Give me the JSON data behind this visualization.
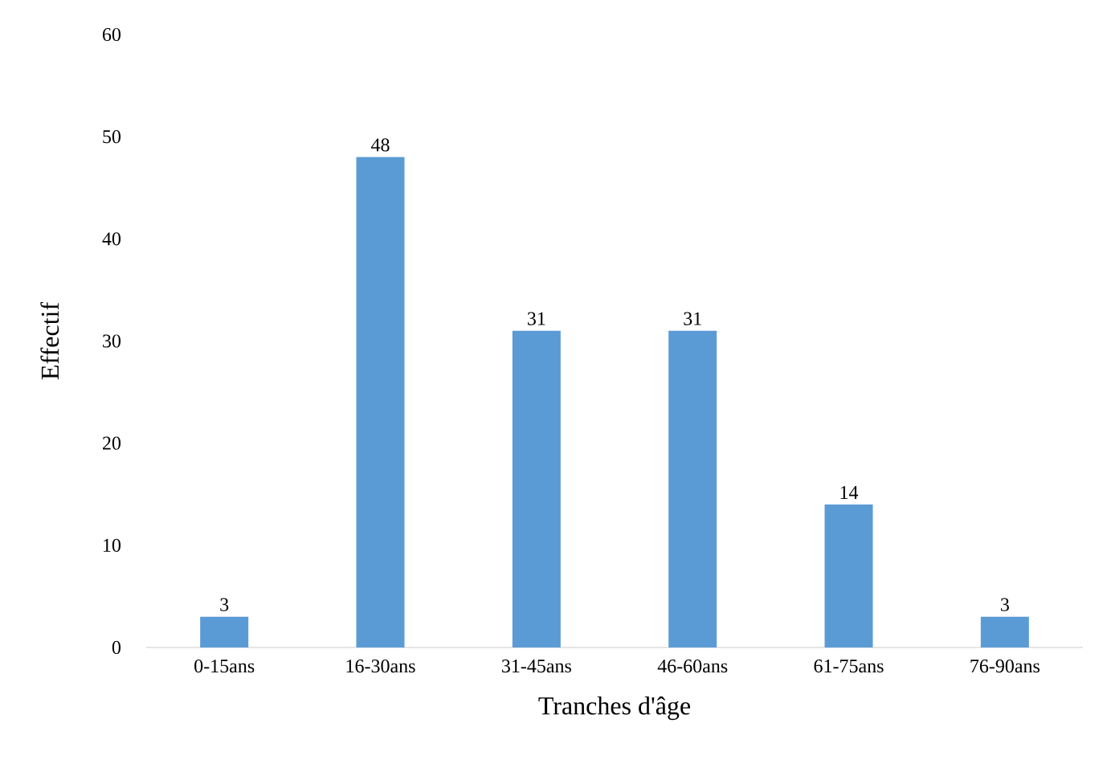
{
  "chart_data": {
    "type": "bar",
    "xlabel": "Tranches d'âge",
    "ylabel": "Effectif",
    "categories": [
      "0-15ans",
      "16-30ans",
      "31-45ans",
      "46-60ans",
      "61-75ans",
      "76-90ans"
    ],
    "values": [
      3,
      48,
      31,
      31,
      14,
      3
    ],
    "color": "#5b9bd5",
    "ylim": [
      0,
      60
    ],
    "yticks": [
      0,
      10,
      20,
      30,
      40,
      50,
      60
    ],
    "data_labels": true
  }
}
